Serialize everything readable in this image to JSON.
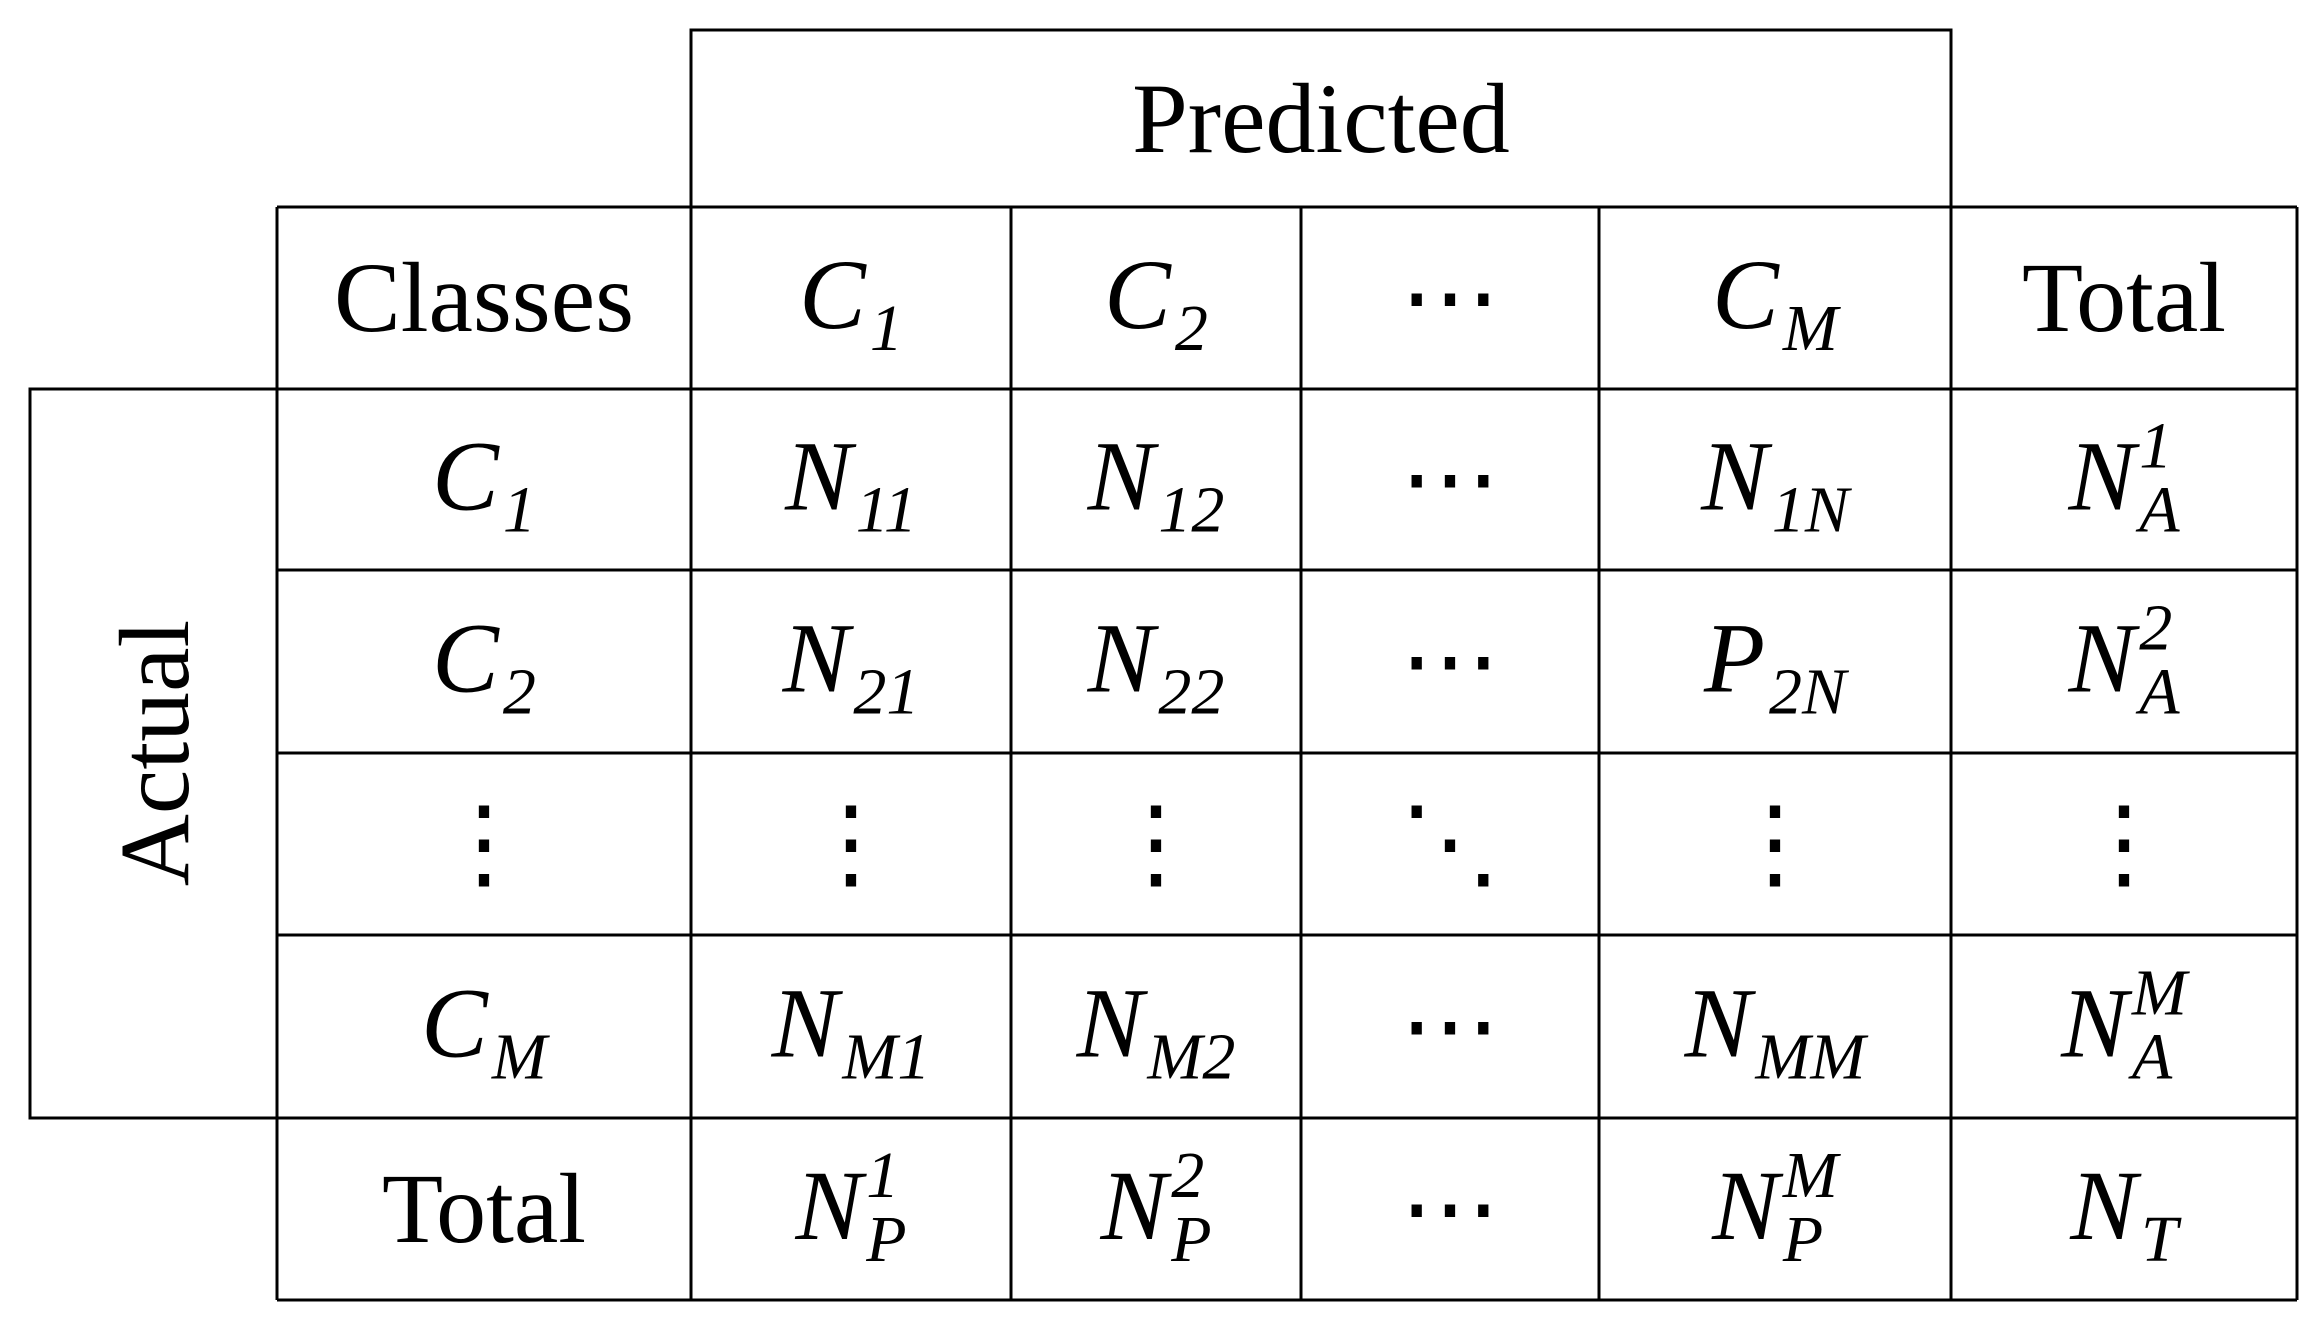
{
  "header": {
    "title": "Predicted"
  },
  "side": {
    "title": "Actual"
  },
  "table": {
    "columns": [
      {
        "text": "Classes"
      },
      {
        "base": "C",
        "sub": "1"
      },
      {
        "base": "C",
        "sub": "2"
      },
      {
        "text": "⋯"
      },
      {
        "base": "C",
        "sub": "M"
      },
      {
        "text": "Total"
      }
    ],
    "rows": [
      [
        {
          "base": "C",
          "sub": "1"
        },
        {
          "base": "N",
          "sub": "11"
        },
        {
          "base": "N",
          "sub": "12"
        },
        {
          "text": "⋯"
        },
        {
          "base": "N",
          "sub": "1N"
        },
        {
          "base": "N",
          "sub": "A",
          "sup": "1"
        }
      ],
      [
        {
          "base": "C",
          "sub": "2"
        },
        {
          "base": "N",
          "sub": "21"
        },
        {
          "base": "N",
          "sub": "22"
        },
        {
          "text": "⋯"
        },
        {
          "base": "P",
          "sub": "2N"
        },
        {
          "base": "N",
          "sub": "A",
          "sup": "2"
        }
      ],
      [
        {
          "text": "⋮"
        },
        {
          "text": "⋮"
        },
        {
          "text": "⋮"
        },
        {
          "text": "⋱"
        },
        {
          "text": "⋮"
        },
        {
          "text": "⋮"
        }
      ],
      [
        {
          "base": "C",
          "sub": "M"
        },
        {
          "base": "N",
          "sub": "M1"
        },
        {
          "base": "N",
          "sub": "M2"
        },
        {
          "text": "⋯"
        },
        {
          "base": "N",
          "sub": "MM"
        },
        {
          "base": "N",
          "sub": "A",
          "sup": "M"
        }
      ],
      [
        {
          "text": "Total"
        },
        {
          "base": "N",
          "sub": "P",
          "sup": "1"
        },
        {
          "base": "N",
          "sub": "P",
          "sup": "2"
        },
        {
          "text": "⋯"
        },
        {
          "base": "N",
          "sub": "P",
          "sup": "M"
        },
        {
          "base": "N",
          "sub": "T"
        }
      ]
    ]
  }
}
